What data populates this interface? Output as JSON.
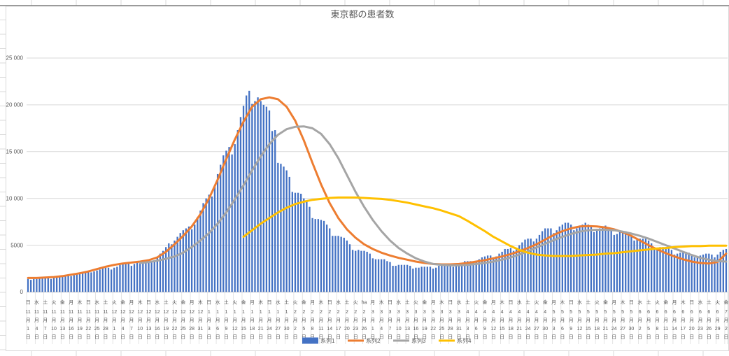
{
  "title": "東京都の患者数",
  "y_axis": {
    "ticks": [
      {
        "label": "0",
        "value": 0
      },
      {
        "label": "5000",
        "value": 5000
      },
      {
        "label": "10 000",
        "value": 10000
      },
      {
        "label": "15 000",
        "value": 15000
      },
      {
        "label": "20 000",
        "value": 20000
      },
      {
        "label": "25 000",
        "value": 25000
      }
    ]
  },
  "legend": [
    {
      "label": "系列1",
      "color": "#4472C4",
      "swatch": "bar"
    },
    {
      "label": "系列2",
      "color": "#ED7D31",
      "swatch": "line"
    },
    {
      "label": "系列3",
      "color": "#A5A5A5",
      "swatch": "line"
    },
    {
      "label": "系列4",
      "color": "#FFC000",
      "swatch": "line"
    }
  ],
  "x_labels": [
    [
      "日",
      "11",
      "1"
    ],
    [
      "水",
      "11",
      "4"
    ],
    [
      "土",
      "11",
      "7"
    ],
    [
      "火",
      "11",
      "10"
    ],
    [
      "金",
      "11",
      "13"
    ],
    [
      "月",
      "11",
      "16"
    ],
    [
      "木",
      "11",
      "19"
    ],
    [
      "日",
      "11",
      "22"
    ],
    [
      "水",
      "11",
      "25"
    ],
    [
      "土",
      "11",
      "28"
    ],
    [
      "火",
      "12",
      "1"
    ],
    [
      "金",
      "12",
      "4"
    ],
    [
      "月",
      "12",
      "7"
    ],
    [
      "木",
      "12",
      "10"
    ],
    [
      "日",
      "12",
      "13"
    ],
    [
      "水",
      "12",
      "16"
    ],
    [
      "土",
      "12",
      "19"
    ],
    [
      "火",
      "12",
      "22"
    ],
    [
      "金",
      "12",
      "25"
    ],
    [
      "月",
      "12",
      "28"
    ],
    [
      "木",
      "12",
      "31"
    ],
    [
      "日",
      "1",
      "3"
    ],
    [
      "水",
      "1",
      "6"
    ],
    [
      "土",
      "1",
      "9"
    ],
    [
      "火",
      "1",
      "12"
    ],
    [
      "金",
      "1",
      "15"
    ],
    [
      "月",
      "1",
      "18"
    ],
    [
      "木",
      "1",
      "21"
    ],
    [
      "日",
      "1",
      "24"
    ],
    [
      "水",
      "1",
      "27"
    ],
    [
      "土",
      "1",
      "30"
    ],
    [
      "火",
      "2",
      "2"
    ],
    [
      "金",
      "2",
      "5"
    ],
    [
      "月",
      "2",
      "8"
    ],
    [
      "木",
      "2",
      "11"
    ],
    [
      "日",
      "2",
      "14"
    ],
    [
      "水",
      "2",
      "17"
    ],
    [
      "土",
      "2",
      "20"
    ],
    [
      "火",
      "2",
      "23"
    ],
    [
      "ha",
      "2",
      "26"
    ],
    [
      "月",
      "3",
      "1"
    ],
    [
      "木",
      "3",
      "4"
    ],
    [
      "日",
      "3",
      "7"
    ],
    [
      "水",
      "3",
      "10"
    ],
    [
      "土",
      "3",
      "13"
    ],
    [
      "火",
      "3",
      "16"
    ],
    [
      "金",
      "3",
      "19"
    ],
    [
      "月",
      "3",
      "22"
    ],
    [
      "木",
      "3",
      "25"
    ],
    [
      "日",
      "3",
      "28"
    ],
    [
      "水",
      "3",
      "31"
    ],
    [
      "土",
      "4",
      "3"
    ],
    [
      "火",
      "4",
      "6"
    ],
    [
      "金",
      "4",
      "9"
    ],
    [
      "月",
      "4",
      "12"
    ],
    [
      "木",
      "4",
      "15"
    ],
    [
      "日",
      "4",
      "18"
    ],
    [
      "水",
      "4",
      "21"
    ],
    [
      "土",
      "4",
      "24"
    ],
    [
      "火",
      "4",
      "27"
    ],
    [
      "金",
      "4",
      "30"
    ],
    [
      "月",
      "5",
      "3"
    ],
    [
      "木",
      "5",
      "6"
    ],
    [
      "日",
      "5",
      "9"
    ],
    [
      "水",
      "5",
      "12"
    ],
    [
      "土",
      "5",
      "15"
    ],
    [
      "火",
      "5",
      "18"
    ],
    [
      "金",
      "5",
      "21"
    ],
    [
      "月",
      "5",
      "24"
    ],
    [
      "木",
      "5",
      "27"
    ],
    [
      "日",
      "5",
      "30"
    ],
    [
      "水",
      "6",
      "2"
    ],
    [
      "土",
      "6",
      "5"
    ],
    [
      "火",
      "6",
      "8"
    ],
    [
      "金",
      "6",
      "11"
    ],
    [
      "月",
      "6",
      "14"
    ],
    [
      "木",
      "6",
      "17"
    ],
    [
      "日",
      "6",
      "20"
    ],
    [
      "水",
      "6",
      "23"
    ],
    [
      "土",
      "6",
      "26"
    ],
    [
      "火",
      "6",
      "29"
    ],
    [
      "金",
      "7",
      "2"
    ]
  ],
  "chart_data": {
    "type": "combo-bar-line",
    "title": "東京都の患者数",
    "ylim": [
      0,
      25000
    ],
    "gridlines": "horizontal",
    "legend_position": "bottom",
    "x_axis": {
      "first_label": "11月1日",
      "last_label": "7月2日",
      "label_interval_days": 3,
      "anomaly_label": "ha",
      "anomaly_label_position": "2月26日"
    },
    "bar_series": {
      "name": "系列1",
      "color": "#4472C4",
      "frequency": "daily",
      "values": [
        1400,
        1300,
        1400,
        1400,
        1500,
        1500,
        1600,
        1500,
        1400,
        1500,
        1600,
        1700,
        1700,
        1800,
        1800,
        1700,
        1800,
        1900,
        2100,
        2100,
        2200,
        2200,
        2100,
        2200,
        2300,
        2400,
        2600,
        2600,
        2600,
        2400,
        2600,
        2700,
        2900,
        3000,
        3100,
        3100,
        2800,
        3000,
        3200,
        3300,
        3400,
        3400,
        3400,
        3200,
        3300,
        3700,
        4100,
        4400,
        4800,
        5200,
        5100,
        5500,
        5900,
        6300,
        6600,
        6800,
        7000,
        6700,
        7200,
        8000,
        8700,
        9500,
        10000,
        10400,
        10200,
        11300,
        12600,
        13600,
        14600,
        15100,
        15500,
        14700,
        15800,
        17300,
        18700,
        19900,
        21000,
        21500,
        20100,
        20400,
        20800,
        20400,
        20000,
        19800,
        19400,
        17200,
        17300,
        13800,
        13700,
        13400,
        13000,
        12300,
        10700,
        10600,
        10600,
        10500,
        10000,
        9700,
        9100,
        7900,
        7800,
        7800,
        7700,
        7600,
        7200,
        6800,
        6000,
        6000,
        6000,
        5900,
        5800,
        5500,
        5100,
        4500,
        4400,
        4500,
        4400,
        4400,
        4300,
        4100,
        3600,
        3500,
        3500,
        3500,
        3500,
        3300,
        3200,
        2800,
        2800,
        2900,
        2900,
        2900,
        2900,
        2800,
        2500,
        2600,
        2600,
        2700,
        2700,
        2700,
        2700,
        2500,
        2600,
        2800,
        2900,
        3000,
        3000,
        2900,
        2700,
        2800,
        3000,
        3100,
        3300,
        3300,
        3300,
        3100,
        3200,
        3500,
        3700,
        3800,
        3900,
        3900,
        3600,
        3800,
        4100,
        4300,
        4600,
        4600,
        4700,
        4400,
        4600,
        5000,
        5300,
        5600,
        5700,
        5700,
        5400,
        5700,
        6100,
        6500,
        6800,
        6800,
        6800,
        6300,
        6600,
        7000,
        7200,
        7400,
        7400,
        7200,
        6600,
        6800,
        7100,
        7200,
        7400,
        7200,
        7100,
        6400,
        6600,
        6800,
        7000,
        7100,
        6900,
        6700,
        6100,
        6200,
        6400,
        6500,
        6500,
        6300,
        6100,
        5500,
        5600,
        5700,
        5700,
        5700,
        5500,
        5200,
        4700,
        4700,
        4800,
        4800,
        4800,
        4700,
        4500,
        4000,
        4100,
        4200,
        4300,
        4300,
        4200,
        4000,
        3700,
        3700,
        3900,
        4000,
        4100,
        4100,
        4000,
        3700,
        4000,
        4300,
        4500,
        4600
      ]
    },
    "line_series": [
      {
        "name": "系列2",
        "color": "#ED7D31",
        "sample_interval_days": 3,
        "values": [
          1500,
          1500,
          1550,
          1600,
          1700,
          1850,
          2000,
          2200,
          2450,
          2700,
          2900,
          3050,
          3150,
          3250,
          3400,
          3700,
          4300,
          5100,
          6000,
          7000,
          8300,
          10000,
          12000,
          14200,
          16300,
          18200,
          19800,
          20600,
          20800,
          20600,
          19800,
          18300,
          16200,
          13800,
          11500,
          9500,
          7900,
          6700,
          5800,
          5100,
          4600,
          4200,
          3900,
          3650,
          3450,
          3250,
          3100,
          3000,
          2950,
          2950,
          3000,
          3100,
          3250,
          3400,
          3600,
          3800,
          4050,
          4350,
          4700,
          5100,
          5600,
          6100,
          6500,
          6800,
          7000,
          7050,
          7000,
          6900,
          6700,
          6400,
          6000,
          5500,
          5000,
          4550,
          4150,
          3800,
          3500,
          3250,
          3100,
          3050,
          3200,
          4100
        ]
      },
      {
        "name": "系列3",
        "color": "#A5A5A5",
        "sample_interval_days": 3,
        "values": [
          null,
          null,
          null,
          null,
          null,
          null,
          null,
          null,
          null,
          null,
          null,
          null,
          null,
          3100,
          3200,
          3350,
          3550,
          3800,
          4200,
          4800,
          5500,
          6300,
          7300,
          8500,
          9900,
          11400,
          13000,
          14500,
          15800,
          16800,
          17400,
          17650,
          17700,
          17500,
          16900,
          15800,
          14300,
          12500,
          10700,
          9100,
          7700,
          6500,
          5500,
          4700,
          4100,
          3600,
          3250,
          3000,
          2900,
          2850,
          2850,
          2900,
          3000,
          3100,
          3250,
          3450,
          3700,
          4000,
          4350,
          4750,
          5150,
          5550,
          5900,
          6200,
          6450,
          6600,
          6650,
          6650,
          6600,
          6450,
          6250,
          6000,
          5700,
          5350,
          5000,
          4650,
          4300,
          3950,
          3650,
          3450,
          3300,
          3250
        ]
      },
      {
        "name": "系列4",
        "color": "#FFC000",
        "sample_interval_days": 3,
        "values": [
          null,
          null,
          null,
          null,
          null,
          null,
          null,
          null,
          null,
          null,
          null,
          null,
          null,
          null,
          null,
          null,
          null,
          null,
          null,
          null,
          null,
          null,
          null,
          null,
          null,
          5900,
          6600,
          7300,
          7900,
          8500,
          9000,
          9400,
          9650,
          9850,
          9950,
          10050,
          10100,
          10100,
          10100,
          10050,
          10000,
          9950,
          9850,
          9700,
          9550,
          9350,
          9150,
          8950,
          8700,
          8400,
          8100,
          7600,
          7050,
          6500,
          5900,
          5400,
          4900,
          4500,
          4200,
          4000,
          3900,
          3850,
          3850,
          3850,
          3900,
          3950,
          4000,
          4100,
          4150,
          4250,
          4350,
          4450,
          4550,
          4650,
          4700,
          4800,
          4850,
          4900,
          4900,
          4950,
          4950,
          4950
        ]
      }
    ]
  }
}
